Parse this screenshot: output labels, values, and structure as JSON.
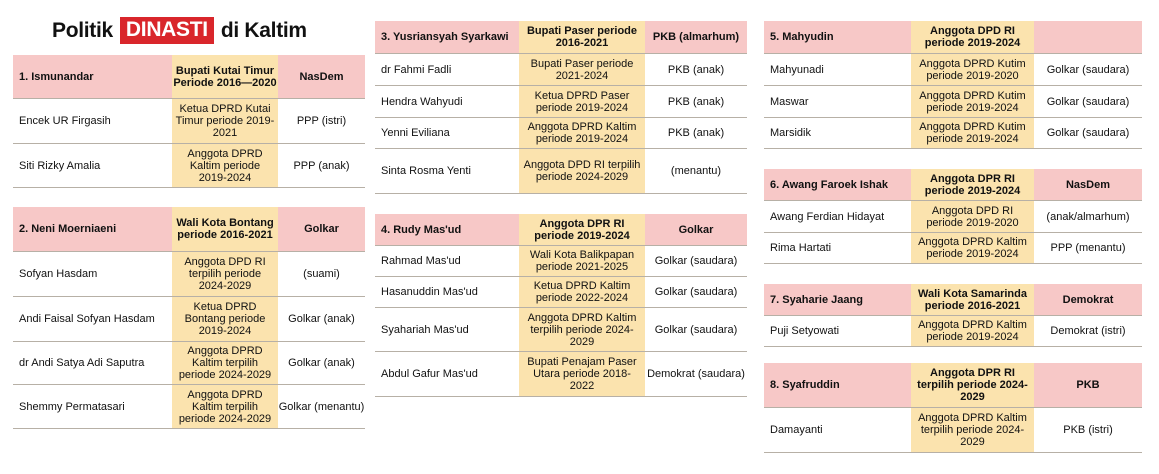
{
  "title": {
    "prefix": "Politik",
    "highlight": "DINASTI",
    "suffix": "di Kaltim"
  },
  "groups": [
    {
      "head": {
        "name": "1.  Ismunandar",
        "position": "Bupati Kutai Timur Periode 2016—2020",
        "party": "NasDem"
      },
      "rows": [
        {
          "name": "Encek UR Firgasih",
          "position": "Ketua DPRD Kutai Timur periode 2019-2021",
          "relation": "PPP (istri)"
        },
        {
          "name": "Siti Rizky Amalia",
          "position": "Anggota DPRD Kaltim periode 2019-2024",
          "relation": "PPP (anak)"
        }
      ]
    },
    {
      "head": {
        "name": "2.  Neni Moerniaeni",
        "position": "Wali Kota Bontang periode 2016-2021",
        "party": "Golkar"
      },
      "rows": [
        {
          "name": "Sofyan Hasdam",
          "position": "Anggota DPD RI terpilih periode 2024-2029",
          "relation": "(suami)"
        },
        {
          "name": "Andi Faisal Sofyan Hasdam",
          "position": "Ketua DPRD Bontang periode 2019-2024",
          "relation": "Golkar (anak)"
        },
        {
          "name": "dr Andi Satya Adi Saputra",
          "position": "Anggota DPRD Kaltim terpilih periode 2024-2029",
          "relation": "Golkar (anak)"
        },
        {
          "name": "Shemmy Permatasari",
          "position": "Anggota DPRD Kaltim terpilih periode 2024-2029",
          "relation": "Golkar (menantu)"
        }
      ]
    },
    {
      "head": {
        "name": "3.  Yusriansyah Syarkawi",
        "position": "Bupati Paser periode 2016-2021",
        "party": "PKB (almarhum)"
      },
      "rows": [
        {
          "name": "dr Fahmi Fadli",
          "position": "Bupati Paser periode 2021-2024",
          "relation": "PKB (anak)"
        },
        {
          "name": "Hendra Wahyudi",
          "position": "Ketua DPRD Paser periode 2019-2024",
          "relation": "PKB (anak)"
        },
        {
          "name": "Yenni Eviliana",
          "position": "Anggota DPRD Kaltim periode 2019-2024",
          "relation": "PKB (anak)"
        },
        {
          "name": "Sinta Rosma Yenti",
          "position": "Anggota DPD RI terpilih periode 2024-2029",
          "relation": "(menantu)"
        }
      ]
    },
    {
      "head": {
        "name": "4.  Rudy Mas'ud",
        "position": "Anggota DPR RI periode 2019-2024",
        "party": "Golkar"
      },
      "rows": [
        {
          "name": "Rahmad Mas'ud",
          "position": "Wali Kota Balikpapan periode 2021-2025",
          "relation": "Golkar (saudara)"
        },
        {
          "name": "Hasanuddin Mas'ud",
          "position": "Ketua DPRD Kaltim periode 2022-2024",
          "relation": "Golkar (saudara)"
        },
        {
          "name": "Syahariah Mas'ud",
          "position": "Anggota DPRD Kaltim terpilih periode 2024-2029",
          "relation": "Golkar (saudara)"
        },
        {
          "name": "Abdul Gafur Mas'ud",
          "position": "Bupati Penajam Paser Utara periode 2018-2022",
          "relation": "Demokrat (saudara)"
        }
      ]
    },
    {
      "head": {
        "name": "5.  Mahyudin",
        "position": "Anggota DPD RI periode 2019-2024",
        "party": ""
      },
      "rows": [
        {
          "name": "Mahyunadi",
          "position": "Anggota DPRD Kutim periode 2019-2020",
          "relation": "Golkar (saudara)"
        },
        {
          "name": "Maswar",
          "position": "Anggota DPRD Kutim periode 2019-2024",
          "relation": "Golkar (saudara)"
        },
        {
          "name": "Marsidik",
          "position": "Anggota DPRD Kutim periode 2019-2024",
          "relation": "Golkar (saudara)"
        }
      ]
    },
    {
      "head": {
        "name": "6.  Awang Faroek Ishak",
        "position": "Anggota DPR RI periode 2019-2024",
        "party": "NasDem"
      },
      "rows": [
        {
          "name": "Awang Ferdian Hidayat",
          "position": "Anggota DPD RI periode 2019-2020",
          "relation": "(anak/almarhum)"
        },
        {
          "name": "Rima Hartati",
          "position": "Anggota DPRD Kaltim periode 2019-2024",
          "relation": "PPP (menantu)"
        }
      ]
    },
    {
      "head": {
        "name": "7.  Syaharie Jaang",
        "position": "Wali Kota Samarinda periode 2016-2021",
        "party": "Demokrat"
      },
      "rows": [
        {
          "name": "Puji Setyowati",
          "position": "Anggota DPRD Kaltim periode 2019-2024",
          "relation": "Demokrat (istri)"
        }
      ]
    },
    {
      "head": {
        "name": "8.  Syafruddin",
        "position": "Anggota DPR RI terpilih periode 2024-2029",
        "party": "PKB"
      },
      "rows": [
        {
          "name": "Damayanti",
          "position": "Anggota DPRD Kaltim terpilih periode 2024-2029",
          "relation": "PKB (istri)"
        }
      ]
    }
  ]
}
